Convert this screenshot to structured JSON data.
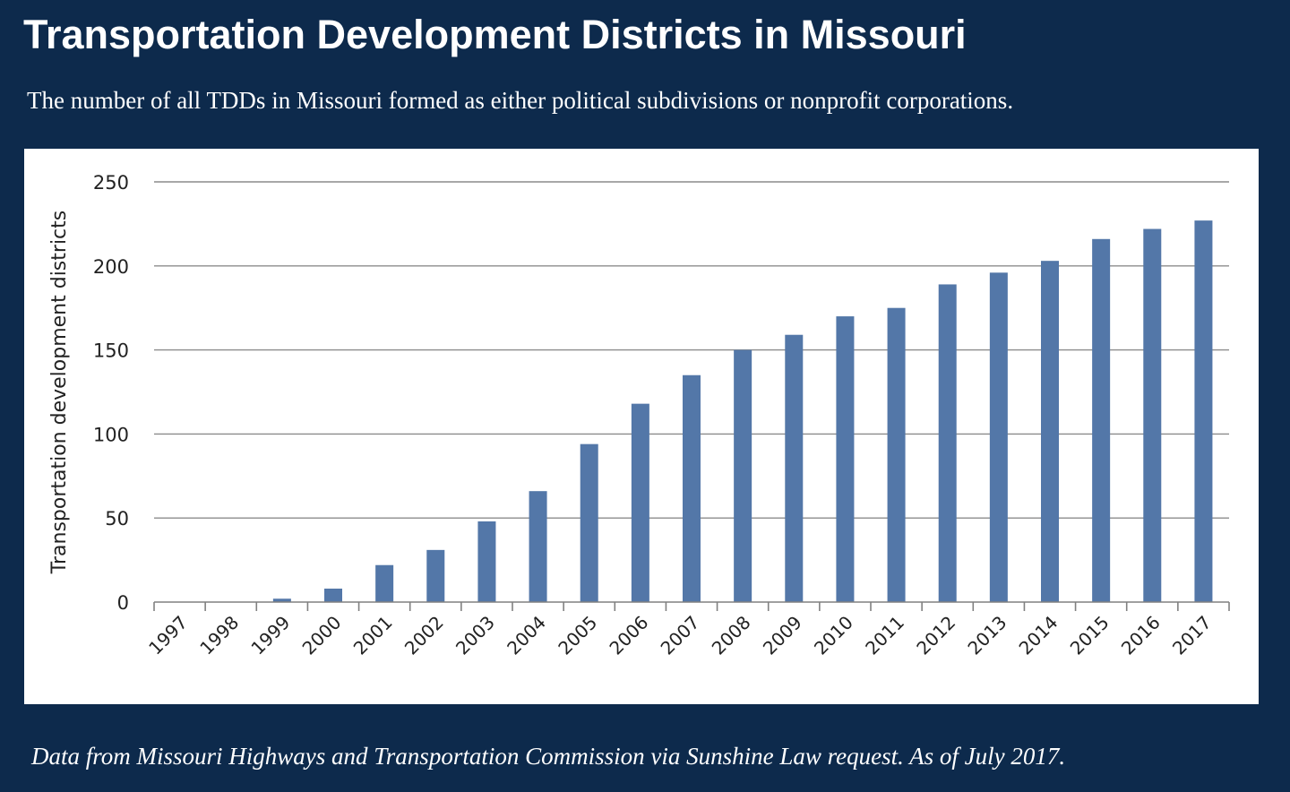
{
  "title": "Transportation Development Districts in Missouri",
  "subtitle": "The number of all TDDs in Missouri formed as either political subdivisions or nonprofit corporations.",
  "source": "Data from Missouri Highways and Transportation Commission via Sunshine Law request. As of July 2017.",
  "colors": {
    "background": "#0d2a4c",
    "panel": "#ffffff",
    "bar": "#5377a8",
    "gridline": "#8c8c8c",
    "axis": "#808080",
    "text": "#222222"
  },
  "chart_data": {
    "type": "bar",
    "title": "",
    "xlabel": "",
    "ylabel": "Transportation development districts",
    "categories": [
      "1997",
      "1998",
      "1999",
      "2000",
      "2001",
      "2002",
      "2003",
      "2004",
      "2005",
      "2006",
      "2007",
      "2008",
      "2009",
      "2010",
      "2011",
      "2012",
      "2013",
      "2014",
      "2015",
      "2016",
      "2017"
    ],
    "values": [
      0,
      0,
      2,
      8,
      22,
      31,
      48,
      66,
      94,
      118,
      135,
      150,
      159,
      170,
      175,
      189,
      196,
      203,
      216,
      222,
      227
    ],
    "ylim": [
      0,
      250
    ],
    "yticks": [
      0,
      50,
      100,
      150,
      200,
      250
    ],
    "grid": true,
    "legend": "none"
  }
}
